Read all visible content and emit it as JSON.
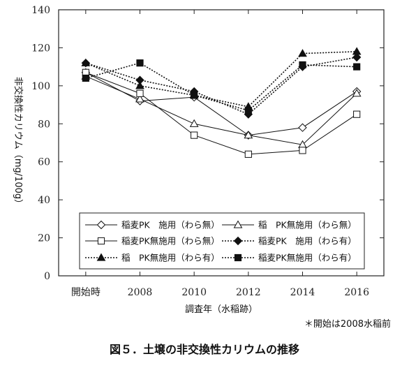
{
  "chart_data": {
    "type": "line",
    "caption": "図５．土壌の非交換性カリウムの推移",
    "xlabel": "調査年（水稲跡）",
    "ylabel": "非交換性カリウム（mg/100g）",
    "note": "＊開始は2008水稲前",
    "categories": [
      "開始時",
      "2008",
      "2010",
      "2012",
      "2014",
      "2016"
    ],
    "ylim": [
      0,
      140
    ],
    "yticks": [
      0,
      20,
      40,
      60,
      80,
      100,
      120,
      140
    ],
    "series": [
      {
        "name": "稲麦PK　施用（わら無）",
        "marker": "diamond-open",
        "dash": "solid",
        "values": [
          107,
          92,
          94,
          74,
          78,
          97
        ]
      },
      {
        "name": "稲　PK無施用（わら無）",
        "marker": "triangle-open",
        "dash": "solid",
        "values": [
          105,
          93,
          80,
          74,
          69,
          96
        ]
      },
      {
        "name": "稲麦PK無施用（わら無）",
        "marker": "square-open",
        "dash": "solid",
        "values": [
          107,
          96,
          74,
          64,
          66,
          85
        ]
      },
      {
        "name": "稲麦PK　施用（わら有）",
        "marker": "diamond-filled",
        "dash": "dotted",
        "values": [
          112,
          103,
          97,
          85,
          110,
          115
        ]
      },
      {
        "name": "稲　PK無施用（わら有）",
        "marker": "triangle-filled",
        "dash": "dotted",
        "values": [
          112,
          100,
          95,
          89,
          117,
          118
        ]
      },
      {
        "name": "稲麦PK無施用（わら有）",
        "marker": "square-filled",
        "dash": "dotted",
        "values": [
          104,
          112,
          95,
          87,
          111,
          110
        ]
      }
    ]
  }
}
